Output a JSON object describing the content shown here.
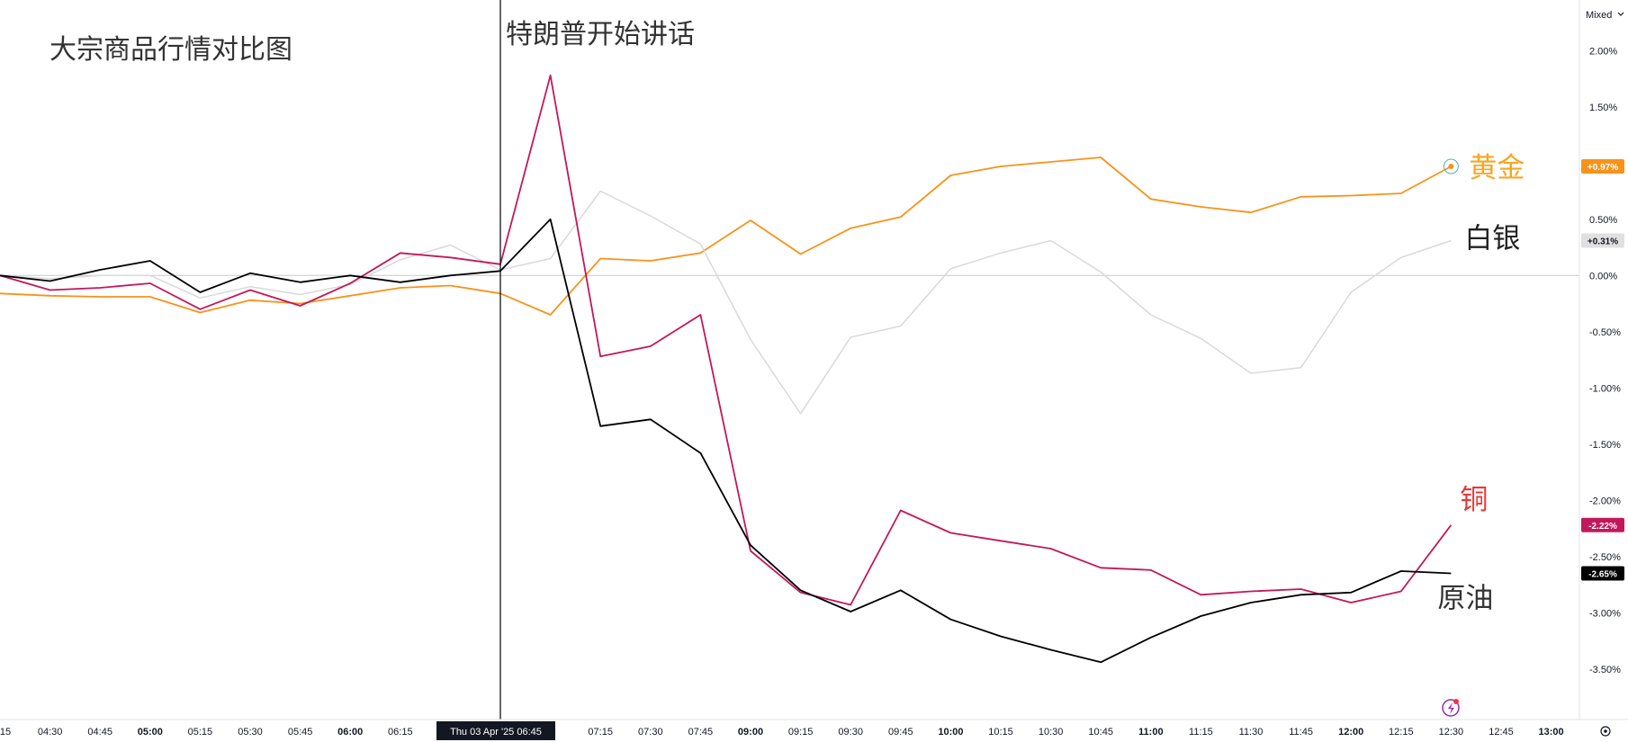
{
  "header": {
    "title": "大宗商品行情对比图",
    "event_label": "特朗普开始讲话",
    "scale_mode": "Mixed"
  },
  "crosshair": {
    "label": "Thu 03 Apr '25   06:45",
    "time": "06:45"
  },
  "chart_data": {
    "type": "line",
    "x": [
      "04:15",
      "04:30",
      "04:45",
      "05:00",
      "05:15",
      "05:30",
      "05:45",
      "06:00",
      "06:15",
      "06:30",
      "06:45",
      "07:00",
      "07:15",
      "07:30",
      "07:45",
      "09:00",
      "09:15",
      "09:30",
      "09:45",
      "10:00",
      "10:15",
      "10:30",
      "10:45",
      "11:00",
      "11:15",
      "11:30",
      "11:45",
      "12:00",
      "12:15",
      "12:30"
    ],
    "x_tick_labels": [
      {
        "t": "04:15",
        "label": "15",
        "bold": false
      },
      {
        "t": "04:30",
        "label": "04:30",
        "bold": false
      },
      {
        "t": "04:45",
        "label": "04:45",
        "bold": false
      },
      {
        "t": "05:00",
        "label": "05:00",
        "bold": true
      },
      {
        "t": "05:15",
        "label": "05:15",
        "bold": false
      },
      {
        "t": "05:30",
        "label": "05:30",
        "bold": false
      },
      {
        "t": "05:45",
        "label": "05:45",
        "bold": false
      },
      {
        "t": "06:00",
        "label": "06:00",
        "bold": true
      },
      {
        "t": "06:15",
        "label": "06:15",
        "bold": false
      },
      {
        "t": "07:15",
        "label": "07:15",
        "bold": false
      },
      {
        "t": "07:30",
        "label": "07:30",
        "bold": false
      },
      {
        "t": "07:45",
        "label": "07:45",
        "bold": false
      },
      {
        "t": "09:00",
        "label": "09:00",
        "bold": true
      },
      {
        "t": "09:15",
        "label": "09:15",
        "bold": false
      },
      {
        "t": "09:30",
        "label": "09:30",
        "bold": false
      },
      {
        "t": "09:45",
        "label": "09:45",
        "bold": false
      },
      {
        "t": "10:00",
        "label": "10:00",
        "bold": true
      },
      {
        "t": "10:15",
        "label": "10:15",
        "bold": false
      },
      {
        "t": "10:30",
        "label": "10:30",
        "bold": false
      },
      {
        "t": "10:45",
        "label": "10:45",
        "bold": false
      },
      {
        "t": "11:00",
        "label": "11:00",
        "bold": true
      },
      {
        "t": "11:15",
        "label": "11:15",
        "bold": false
      },
      {
        "t": "11:30",
        "label": "11:30",
        "bold": false
      },
      {
        "t": "11:45",
        "label": "11:45",
        "bold": false
      },
      {
        "t": "12:00",
        "label": "12:00",
        "bold": true
      },
      {
        "t": "12:15",
        "label": "12:15",
        "bold": false
      },
      {
        "t": "12:30",
        "label": "12:30",
        "bold": false
      },
      {
        "t": "12:45",
        "label": "12:45",
        "bold": false
      },
      {
        "t": "13:00",
        "label": "13:00",
        "bold": true
      }
    ],
    "y_ticks": [
      "2.00%",
      "1.50%",
      "1.00%",
      "0.50%",
      "0.00%",
      "-0.50%",
      "-1.00%",
      "-1.50%",
      "-2.00%",
      "-2.50%",
      "-3.00%",
      "-3.50%"
    ],
    "y_tick_values": [
      2.0,
      1.5,
      1.0,
      0.5,
      0.0,
      -0.5,
      -1.0,
      -1.5,
      -2.0,
      -2.5,
      -3.0,
      -3.5
    ],
    "ylim": [
      -3.95,
      2.45
    ],
    "baseline": 0,
    "grid": false,
    "series": [
      {
        "name": "黄金",
        "color": "#f7931a",
        "label_color": "#f5a623",
        "last_label": "+0.97%",
        "values": [
          -0.16,
          -0.18,
          -0.19,
          -0.19,
          -0.33,
          -0.22,
          -0.25,
          -0.18,
          -0.11,
          -0.09,
          -0.16,
          -0.35,
          0.15,
          0.13,
          0.2,
          0.49,
          0.19,
          0.42,
          0.52,
          0.89,
          0.97,
          1.01,
          1.05,
          0.68,
          0.61,
          0.56,
          0.7,
          0.71,
          0.73,
          0.97
        ]
      },
      {
        "name": "白银",
        "color": "#d9d9d9",
        "label_color": "#222222",
        "last_label": "+0.31%",
        "values": [
          0.0,
          -0.03,
          0.0,
          0.0,
          -0.2,
          -0.1,
          -0.17,
          -0.08,
          0.14,
          0.27,
          0.05,
          0.15,
          0.75,
          0.53,
          0.28,
          -0.57,
          -1.23,
          -0.55,
          -0.45,
          0.06,
          0.2,
          0.31,
          0.03,
          -0.35,
          -0.56,
          -0.87,
          -0.82,
          -0.15,
          0.16,
          0.31
        ]
      },
      {
        "name": "铜",
        "color": "#c2185b",
        "label_color": "#e53935",
        "last_label": "-2.22%",
        "values": [
          0.0,
          -0.13,
          -0.11,
          -0.07,
          -0.3,
          -0.13,
          -0.27,
          -0.07,
          0.2,
          0.16,
          0.1,
          1.78,
          -0.72,
          -0.63,
          -0.35,
          -2.45,
          -2.82,
          -2.93,
          -2.09,
          -2.29,
          -2.36,
          -2.43,
          -2.6,
          -2.62,
          -2.84,
          -2.81,
          -2.79,
          -2.91,
          -2.81,
          -2.22
        ]
      },
      {
        "name": "原油",
        "color": "#000000",
        "label_color": "#333333",
        "last_label": "-2.65%",
        "values": [
          0.0,
          -0.05,
          0.05,
          0.13,
          -0.15,
          0.02,
          -0.06,
          0.0,
          -0.06,
          0.0,
          0.04,
          0.5,
          -1.34,
          -1.28,
          -1.58,
          -2.4,
          -2.8,
          -2.99,
          -2.8,
          -3.06,
          -3.21,
          -3.33,
          -3.44,
          -3.22,
          -3.03,
          -2.91,
          -2.84,
          -2.82,
          -2.63,
          -2.65
        ]
      }
    ]
  }
}
